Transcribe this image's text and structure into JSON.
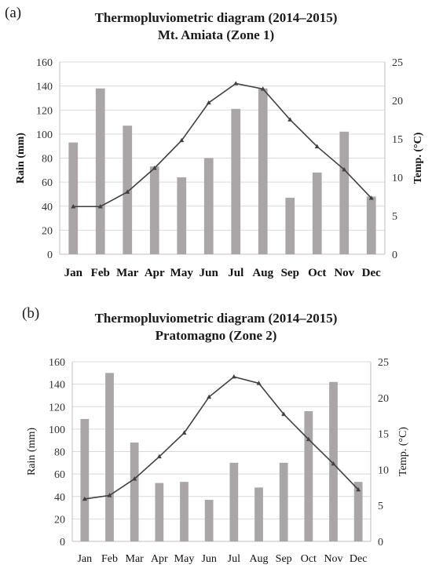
{
  "chart_data": [
    {
      "panel_label": "(a)",
      "type": "bar+line",
      "title": "Thermopluviometric diagram (2014–2015)",
      "subtitle": "Mt. Amiata (Zone 1)",
      "categories": [
        "Jan",
        "Feb",
        "Mar",
        "Apr",
        "May",
        "Jun",
        "Jul",
        "Aug",
        "Sep",
        "Oct",
        "Nov",
        "Dec"
      ],
      "y_left": {
        "label": "Rain (mm)",
        "range": [
          0,
          160
        ],
        "ticks": [
          "0",
          "20",
          "40",
          "60",
          "80",
          "100",
          "120",
          "140",
          "160"
        ]
      },
      "y_right": {
        "label": "Temp. (°C)",
        "range": [
          0,
          25
        ],
        "ticks": [
          "0",
          "5",
          "10",
          "15",
          "20",
          "25"
        ]
      },
      "grid": true,
      "series": [
        {
          "kind": "bar",
          "axis": "left",
          "values": [
            93,
            138,
            107,
            73,
            64,
            80,
            121,
            138,
            47,
            68,
            102,
            48
          ]
        },
        {
          "kind": "line",
          "axis": "right",
          "values": [
            6.2,
            6.2,
            8.1,
            11.2,
            14.8,
            19.7,
            22.2,
            21.5,
            17.5,
            14.0,
            11.0,
            7.3
          ]
        }
      ],
      "colors": {
        "bar": "#aaa5a6",
        "line": "#404040",
        "grid": "#d9d9d9",
        "axis": "#bfbfbf"
      }
    },
    {
      "panel_label": "(b)",
      "type": "bar+line",
      "title": "Thermopluviometric diagram (2014–2015)",
      "subtitle": "Pratomagno (Zone 2)",
      "categories": [
        "Jan",
        "Feb",
        "Mar",
        "Apr",
        "May",
        "Jun",
        "Jul",
        "Aug",
        "Sep",
        "Oct",
        "Nov",
        "Dec"
      ],
      "y_left": {
        "label": "Rain (mm)",
        "range": [
          0,
          160
        ],
        "ticks": [
          "0",
          "20",
          "40",
          "60",
          "80",
          "100",
          "120",
          "140",
          "160"
        ]
      },
      "y_right": {
        "label": "Temp. (°C)",
        "range": [
          0,
          25
        ],
        "ticks": [
          "0",
          "5",
          "10",
          "15",
          "20",
          "25"
        ]
      },
      "grid": true,
      "series": [
        {
          "kind": "bar",
          "axis": "left",
          "values": [
            109,
            150,
            88,
            52,
            53,
            37,
            70,
            48,
            70,
            116,
            142,
            53
          ]
        },
        {
          "kind": "line",
          "axis": "right",
          "values": [
            5.9,
            6.4,
            8.7,
            11.8,
            15.1,
            20.1,
            22.9,
            22.0,
            17.7,
            14.2,
            10.8,
            7.2
          ]
        }
      ],
      "colors": {
        "bar": "#aaa5a6",
        "line": "#404040",
        "grid": "#d9d9d9",
        "axis": "#bfbfbf"
      }
    }
  ]
}
